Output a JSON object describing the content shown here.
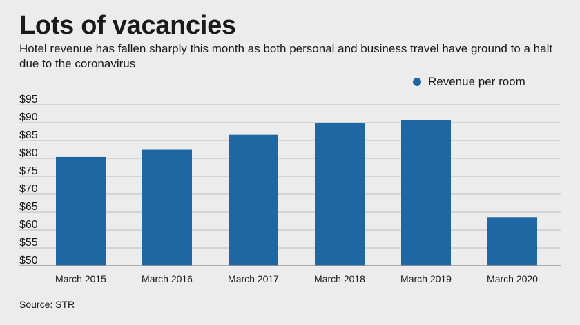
{
  "title": "Lots of vacancies",
  "subtitle": "Hotel revenue has fallen sharply this month as both personal and business travel have ground to a halt due to the coronavirus",
  "source": "Source: STR",
  "colors": {
    "bar": "#1f67a3",
    "grid": "#bdbdbd",
    "axis": "#9a9a9a"
  },
  "chart_data": {
    "type": "bar",
    "categories": [
      "March 2015",
      "March 2016",
      "March 2017",
      "March 2018",
      "March 2019",
      "March 2020"
    ],
    "series": [
      {
        "name": "Revenue per room",
        "values": [
          80.4,
          82.4,
          86.6,
          90.0,
          90.6,
          63.6
        ]
      }
    ],
    "ylim": [
      50,
      95
    ],
    "yticks": [
      50,
      55,
      60,
      65,
      70,
      75,
      80,
      85,
      90,
      95
    ],
    "ytick_labels": [
      "$50",
      "$55",
      "$60",
      "$65",
      "$70",
      "$75",
      "$80",
      "$85",
      "$90",
      "$95"
    ],
    "legend": "top-right",
    "grid": true
  }
}
